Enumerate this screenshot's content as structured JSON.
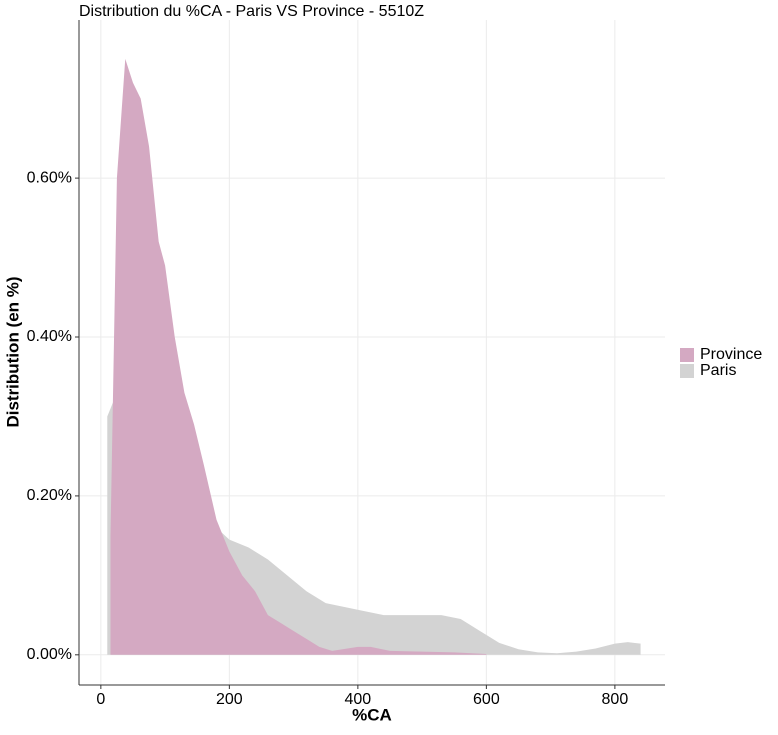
{
  "chart_data": {
    "type": "area",
    "title": "Distribution du %CA - Paris VS Province - 5510Z",
    "x_label": "%CA",
    "y_label": "Distribution (en %)",
    "xlim": [
      -34,
      878
    ],
    "ylim": [
      -0.038,
      0.799
    ],
    "xticks": [
      0,
      200,
      400,
      600,
      800
    ],
    "yticks": [
      {
        "value": 0,
        "label": "0.00%"
      },
      {
        "value": 0.2,
        "label": "0.20%"
      },
      {
        "value": 0.4,
        "label": "0.40%"
      },
      {
        "value": 0.6,
        "label": "0.60%"
      }
    ],
    "grid": true,
    "legend": "right",
    "series": [
      {
        "name": "Paris",
        "color": "#d3d3d3",
        "x": [
          10,
          20,
          35,
          50,
          65,
          80,
          100,
          120,
          140,
          160,
          180,
          200,
          230,
          260,
          290,
          320,
          350,
          380,
          410,
          440,
          470,
          500,
          530,
          560,
          590,
          620,
          650,
          680,
          710,
          740,
          770,
          800,
          820,
          840
        ],
        "values": [
          0.3,
          0.32,
          0.34,
          0.345,
          0.33,
          0.31,
          0.29,
          0.25,
          0.21,
          0.18,
          0.16,
          0.145,
          0.135,
          0.12,
          0.1,
          0.08,
          0.065,
          0.06,
          0.055,
          0.05,
          0.05,
          0.05,
          0.05,
          0.045,
          0.03,
          0.015,
          0.007,
          0.003,
          0.002,
          0.004,
          0.008,
          0.014,
          0.016,
          0.014
        ]
      },
      {
        "name": "Province",
        "color": "#d4a9c2",
        "x": [
          15,
          25,
          38,
          50,
          62,
          75,
          90,
          100,
          115,
          130,
          145,
          160,
          180,
          200,
          220,
          240,
          260,
          280,
          300,
          320,
          340,
          360,
          400,
          420,
          450,
          500,
          550,
          600
        ],
        "values": [
          0.15,
          0.6,
          0.75,
          0.72,
          0.7,
          0.64,
          0.52,
          0.49,
          0.4,
          0.33,
          0.29,
          0.24,
          0.17,
          0.13,
          0.1,
          0.08,
          0.05,
          0.04,
          0.03,
          0.02,
          0.01,
          0.005,
          0.01,
          0.01,
          0.005,
          0.004,
          0.003,
          0.001
        ]
      }
    ]
  }
}
